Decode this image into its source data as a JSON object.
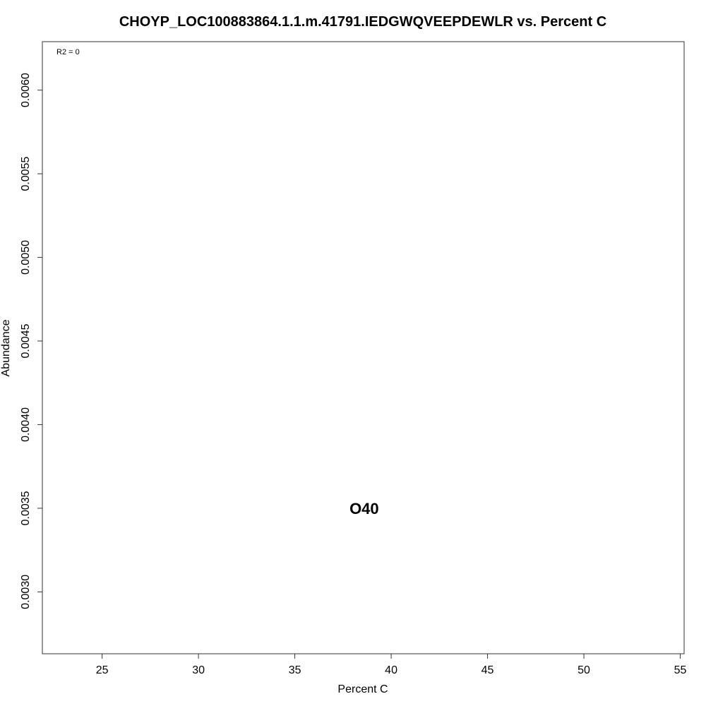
{
  "chart_data": {
    "type": "scatter",
    "title": "CHOYP_LOC100883864.1.1.m.41791.IEDGWQVEEPDEWLR vs. Percent C",
    "xlabel": "Percent C",
    "ylabel": "Abundance",
    "xlim": [
      21.9,
      55.2
    ],
    "ylim": [
      0.00263,
      0.00629
    ],
    "x_ticks": [
      25,
      30,
      35,
      40,
      45,
      50,
      55
    ],
    "y_ticks": [
      0.003,
      0.0035,
      0.004,
      0.0045,
      0.005,
      0.0055,
      0.006
    ],
    "y_tick_labels": [
      "0.0030",
      "0.0035",
      "0.0040",
      "0.0045",
      "0.0050",
      "0.0055",
      "0.0060"
    ],
    "grid": false,
    "annotation": "R2 = 0",
    "points": [
      {
        "label": "O40",
        "x": 38.6,
        "y": 0.0035
      }
    ]
  }
}
